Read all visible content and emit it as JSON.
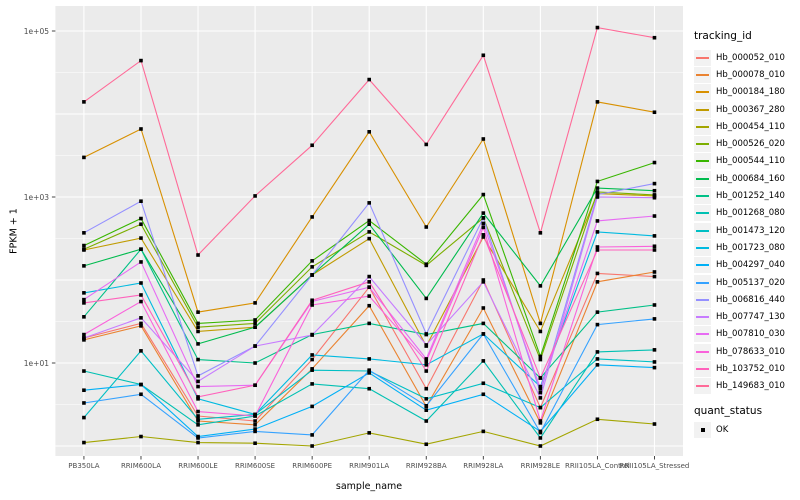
{
  "y_axis": {
    "title": "FPKM + 1",
    "ticks": [
      {
        "label": "1e+05",
        "value": 100000
      },
      {
        "label": "1e+03",
        "value": 1000
      },
      {
        "label": "1e+01",
        "value": 10
      }
    ]
  },
  "x_axis": {
    "title": "sample_name"
  },
  "legend": {
    "tracking_title": "tracking_id",
    "quant_title": "quant_status",
    "quant_value": "OK",
    "quant_marker": "black-square"
  },
  "panel": {
    "background": "#ebebeb",
    "gridline_color": "#ffffff",
    "point_color": "#000000"
  },
  "chart_data": {
    "type": "line",
    "title": "",
    "xlabel": "sample_name",
    "ylabel": "FPKM + 1",
    "yscale": "log",
    "ylim": [
      1,
      120000
    ],
    "grid": true,
    "legend_position": "right",
    "point_shape": "filled-black-square",
    "x": [
      "PB350LA",
      "RRIM600LA",
      "RRIM600LE",
      "RRIM600SE",
      "RRIM600PE",
      "RRIM901LA",
      "RRIM928BA",
      "RRIM928LA",
      "RRIM928LE",
      "RRII105LA_Control",
      "RRII105LA_Stressed"
    ],
    "series": [
      {
        "name": "Hb_000052_010",
        "color": "#F8766D",
        "values": [
          20,
          30,
          2.3,
          2.0,
          11,
          82,
          4.9,
          100,
          2.9,
          120,
          110
        ]
      },
      {
        "name": "Hb_000078_010",
        "color": "#EA8331",
        "values": [
          19,
          28,
          2.0,
          1.8,
          8.5,
          49,
          3.0,
          46,
          1.9,
          95,
          125
        ]
      },
      {
        "name": "Hb_000184_180",
        "color": "#D89000",
        "values": [
          3000,
          6600,
          41,
          53,
          575,
          6100,
          435,
          5000,
          30,
          14000,
          10500
        ]
      },
      {
        "name": "Hb_000367_280",
        "color": "#C09B00",
        "values": [
          230,
          320,
          24,
          27,
          115,
          315,
          16,
          330,
          24,
          1100,
          1030
        ]
      },
      {
        "name": "Hb_000454_110",
        "color": "#A3A500",
        "values": [
          1.1,
          1.3,
          1.1,
          1.08,
          1.0,
          1.44,
          1.05,
          1.5,
          1.0,
          2.1,
          1.84
        ]
      },
      {
        "name": "Hb_000526_020",
        "color": "#7CAE00",
        "values": [
          235,
          470,
          27,
          30,
          144,
          380,
          150,
          560,
          11,
          1150,
          1060
        ]
      },
      {
        "name": "Hb_000544_110",
        "color": "#39B600",
        "values": [
          260,
          550,
          30,
          33,
          170,
          520,
          155,
          1070,
          12,
          1540,
          2600
        ]
      },
      {
        "name": "Hb_000684_160",
        "color": "#00BB4E",
        "values": [
          148,
          235,
          17,
          27,
          115,
          470,
          60,
          640,
          85,
          1280,
          1190
        ]
      },
      {
        "name": "Hb_001252_140",
        "color": "#00C087",
        "values": [
          36,
          235,
          11,
          10,
          22,
          30,
          22,
          30,
          6.6,
          41,
          50
        ]
      },
      {
        "name": "Hb_001268_080",
        "color": "#00C0B2",
        "values": [
          8.0,
          5.5,
          1.8,
          2.3,
          5.6,
          4.9,
          2.0,
          10.6,
          1.25,
          13.6,
          14.4
        ]
      },
      {
        "name": "Hb_001473_120",
        "color": "#00BFC4",
        "values": [
          2.2,
          14,
          2.1,
          2.4,
          8.2,
          8.0,
          3.7,
          5.7,
          2.9,
          11.2,
          10.3
        ]
      },
      {
        "name": "Hb_001723_080",
        "color": "#00BAE0",
        "values": [
          70,
          92,
          3.7,
          2.4,
          12.5,
          11.2,
          9.5,
          22.4,
          5.2,
          380,
          340
        ]
      },
      {
        "name": "Hb_004297_040",
        "color": "#00B0F6",
        "values": [
          4.7,
          5.5,
          1.3,
          1.6,
          3.0,
          7.6,
          2.7,
          4.2,
          1.5,
          9.5,
          8.8
        ]
      },
      {
        "name": "Hb_005137_020",
        "color": "#35A2FF",
        "values": [
          3.3,
          4.2,
          1.25,
          1.5,
          1.36,
          8.2,
          3.05,
          22.4,
          1.45,
          29,
          34
        ]
      },
      {
        "name": "Hb_006816_440",
        "color": "#9590FF",
        "values": [
          370,
          890,
          7.0,
          16,
          115,
          850,
          22.4,
          560,
          4.4,
          1070,
          1450
        ]
      },
      {
        "name": "Hb_007747_130",
        "color": "#C77CFF",
        "values": [
          20,
          35,
          6.0,
          16,
          21.7,
          110,
          16.5,
          95,
          3.8,
          1000,
          980
        ]
      },
      {
        "name": "Hb_007810_030",
        "color": "#E76BF3",
        "values": [
          58,
          165,
          5.2,
          5.4,
          55,
          82,
          11.2,
          480,
          4.9,
          515,
          590
        ]
      },
      {
        "name": "Hb_078633_010",
        "color": "#FA62DB",
        "values": [
          22,
          55,
          2.6,
          2.3,
          50,
          64,
          10.5,
          430,
          2.0,
          250,
          255
        ]
      },
      {
        "name": "Hb_103752_010",
        "color": "#FF62BC",
        "values": [
          53,
          66,
          3.9,
          5.4,
          57,
          95,
          8.0,
          350,
          6.6,
          230,
          230
        ]
      },
      {
        "name": "Hb_149683_010",
        "color": "#FF6A98",
        "values": [
          14000,
          44000,
          200,
          1030,
          4200,
          26000,
          4300,
          51000,
          370,
          110000,
          83000
        ]
      }
    ]
  }
}
